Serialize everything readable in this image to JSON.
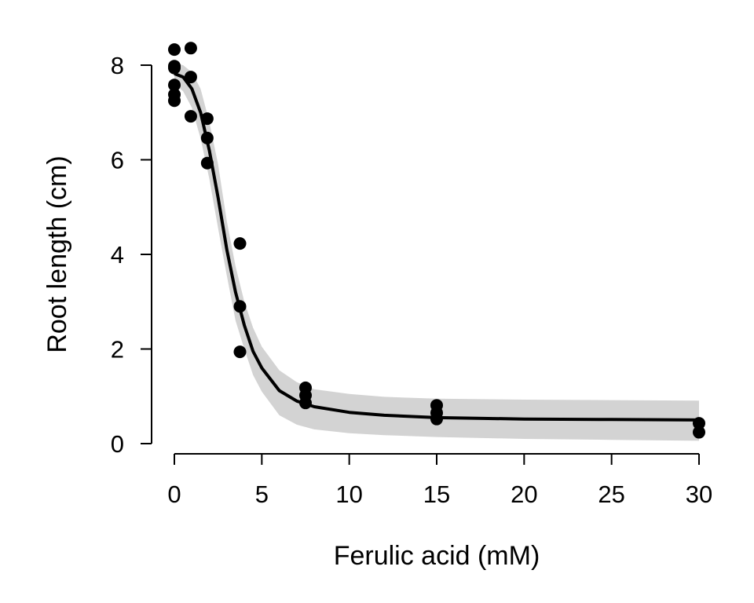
{
  "chart_data": {
    "type": "scatter",
    "title": "",
    "xlabel": "Ferulic acid (mM)",
    "ylabel": "Root length (cm)",
    "xlim": [
      0,
      30
    ],
    "ylim": [
      0,
      8
    ],
    "x_ticks": [
      0,
      5,
      10,
      15,
      20,
      25,
      30
    ],
    "y_ticks": [
      0,
      2,
      4,
      6,
      8
    ],
    "grid": false,
    "legend": "none",
    "colors": {
      "points": "#000000",
      "fit_line": "#000000",
      "band": "#d3d3d3"
    },
    "points": [
      {
        "x": 0,
        "y": 8.33
      },
      {
        "x": 0,
        "y": 7.98
      },
      {
        "x": 0,
        "y": 7.94
      },
      {
        "x": 0,
        "y": 7.58
      },
      {
        "x": 0,
        "y": 7.38
      },
      {
        "x": 0,
        "y": 7.25
      },
      {
        "x": 0.94,
        "y": 8.36
      },
      {
        "x": 0.94,
        "y": 7.75
      },
      {
        "x": 0.94,
        "y": 6.92
      },
      {
        "x": 1.88,
        "y": 6.87
      },
      {
        "x": 1.88,
        "y": 6.46
      },
      {
        "x": 1.88,
        "y": 5.93
      },
      {
        "x": 3.75,
        "y": 4.23
      },
      {
        "x": 3.75,
        "y": 2.9
      },
      {
        "x": 3.75,
        "y": 1.94
      },
      {
        "x": 7.5,
        "y": 1.18
      },
      {
        "x": 7.5,
        "y": 1.02
      },
      {
        "x": 7.5,
        "y": 0.86
      },
      {
        "x": 15,
        "y": 0.81
      },
      {
        "x": 15,
        "y": 0.65
      },
      {
        "x": 15,
        "y": 0.52
      },
      {
        "x": 30,
        "y": 0.43
      },
      {
        "x": 30,
        "y": 0.24
      }
    ],
    "fit_curve": {
      "x": [
        0,
        0.5,
        1,
        1.5,
        2,
        2.5,
        3,
        3.5,
        4,
        4.5,
        5,
        6,
        7,
        8,
        10,
        12,
        15,
        20,
        25,
        30
      ],
      "y": [
        7.82,
        7.75,
        7.5,
        7.0,
        6.2,
        5.2,
        4.1,
        3.2,
        2.5,
        1.95,
        1.6,
        1.12,
        0.9,
        0.78,
        0.66,
        0.6,
        0.55,
        0.52,
        0.51,
        0.5
      ]
    },
    "confidence_band": {
      "x": [
        0,
        0.5,
        1,
        1.5,
        2,
        2.5,
        3,
        3.5,
        4,
        4.5,
        5,
        6,
        7,
        8,
        10,
        12,
        15,
        20,
        25,
        30
      ],
      "lower": [
        7.6,
        7.45,
        7.1,
        6.45,
        5.6,
        4.55,
        3.55,
        2.6,
        2.0,
        1.45,
        1.1,
        0.6,
        0.4,
        0.3,
        0.22,
        0.18,
        0.14,
        0.1,
        0.08,
        0.06
      ],
      "upper": [
        8.05,
        8.0,
        7.85,
        7.5,
        6.8,
        5.9,
        4.7,
        3.75,
        3.0,
        2.45,
        2.05,
        1.55,
        1.3,
        1.15,
        1.05,
        0.99,
        0.95,
        0.93,
        0.92,
        0.91
      ]
    }
  }
}
